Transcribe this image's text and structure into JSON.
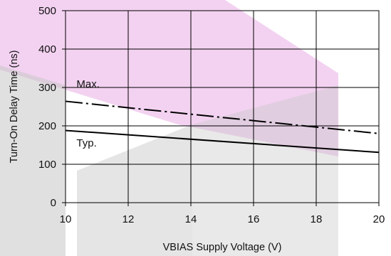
{
  "chart_data": {
    "type": "line",
    "title": "",
    "xlabel": "VBIAS Supply Voltage (V)",
    "ylabel": "Turn-On Delay Time (ns)",
    "xlim": [
      10,
      20
    ],
    "ylim": [
      0,
      500
    ],
    "xticks": [
      10,
      12,
      14,
      16,
      18,
      20
    ],
    "yticks": [
      0,
      100,
      200,
      300,
      400,
      500
    ],
    "grid": true,
    "series": [
      {
        "name": "Max.",
        "style": "dashed",
        "x": [
          10,
          20
        ],
        "y": [
          264,
          180
        ]
      },
      {
        "name": "Typ.",
        "style": "solid",
        "x": [
          10,
          20
        ],
        "y": [
          188,
          131
        ]
      }
    ],
    "annotations": [
      {
        "text": "Max.",
        "x": 10.35,
        "y": 300,
        "series": "Max."
      },
      {
        "text": "Typ.",
        "x": 10.35,
        "y": 146,
        "series": "Typ."
      }
    ],
    "colors": {
      "line": "#000000",
      "grid": "#000000",
      "watermark_pink": "#e8a6e3",
      "watermark_gray": "#c6c6c6"
    },
    "background_decoration": "faint pink and gray diagonal watermark bands"
  }
}
